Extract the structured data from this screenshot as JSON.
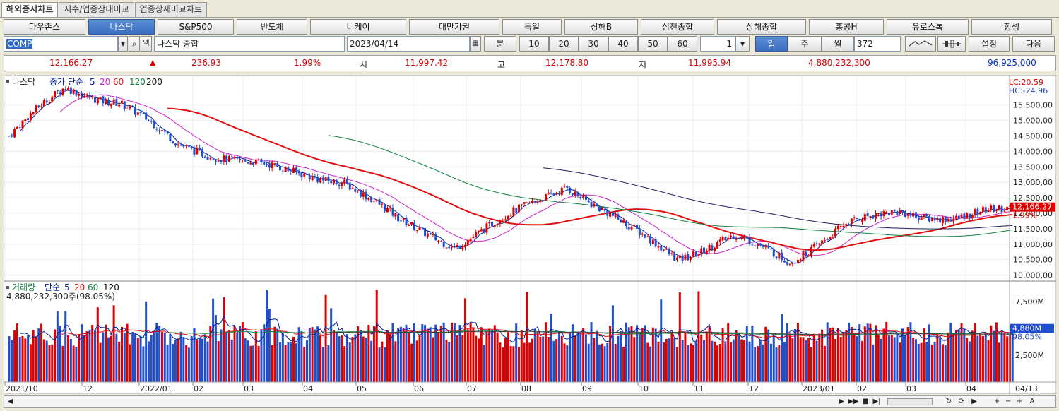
{
  "tabs": [
    "해외증시차트",
    "지수/업종상대비교",
    "업종상세비교차트"
  ],
  "markets": [
    "다우존스",
    "나스닥",
    "S&P500",
    "반도체",
    "니케이",
    "대만가권",
    "독일",
    "상해B",
    "심천종합",
    "상해종합",
    "홍콩H",
    "유로스톡",
    "항셍"
  ],
  "active_market": "나스닥",
  "controls": {
    "code": "COMP",
    "name": "나스닥 종합",
    "date": "2023/04/14",
    "minute_label": "분",
    "minute_options": [
      "10",
      "20",
      "30",
      "40",
      "50",
      "60"
    ],
    "spin_value": "1",
    "period_day": "일",
    "period_week": "주",
    "period_month": "월",
    "count": "372",
    "settings_label": "설정",
    "next_label": "다음",
    "chk_label": "옉"
  },
  "quote": {
    "price": "12,166.27",
    "change": "236.93",
    "change_pct": "1.99%",
    "open_label": "시",
    "open": "11,997.42",
    "high_label": "고",
    "high": "12,178.80",
    "low_label": "저",
    "low": "11,995.94",
    "volume": "4,880,232,300",
    "amount": "96,925,000"
  },
  "price_panel": {
    "title": "나스닥",
    "ma_prefix": "종가 단순",
    "ma_periods": [
      "5",
      "20",
      "60",
      "120",
      "200"
    ],
    "lc": "LC:20.59",
    "hc": "HC:-24.96",
    "current_tag": "12,166.27",
    "current_pct": "1.99%",
    "y_labels": [
      "15,500,00",
      "15,000,00",
      "14,500,00",
      "14,000,00",
      "13,500,00",
      "13,000,00",
      "12,500,00",
      "12,000,00",
      "11,500,00",
      "11,000,00",
      "10,500,00",
      "10,000,00"
    ]
  },
  "volume_panel": {
    "title": "거래량",
    "ma_prefix": "단순",
    "ma_periods": [
      "5",
      "20",
      "60",
      "120"
    ],
    "info": "4,880,232,300주(98.05%)",
    "y_labels": [
      "7,500M",
      "5,000M",
      "2,500M"
    ],
    "current_tag": "4,880M",
    "current_pct": "98.05%"
  },
  "x_labels": [
    "2021/10",
    "12",
    "2022/01",
    "02",
    "03",
    "04",
    "05",
    "06",
    "07",
    "08",
    "09",
    "10",
    "11",
    "12",
    "2023/01",
    "02",
    "03",
    "04"
  ],
  "x_end_label": "04/13",
  "colors": {
    "up": "#e00000",
    "down": "#1f4fcc",
    "ma5": "#0020a0",
    "ma20": "#d020d0",
    "ma60": "#e01010",
    "ma120": "#108040",
    "ma200": "#202060"
  },
  "chart_data": {
    "type": "candlestick",
    "x_range": [
      "2021/10",
      "2023/04/14"
    ],
    "y_range": [
      9900,
      16200
    ],
    "price_keypoints": [
      [
        "2021/10",
        14500
      ],
      [
        "2021/11",
        16050
      ],
      [
        "2021/12",
        15600
      ],
      [
        "2022/01",
        14200
      ],
      [
        "2022/02",
        13800
      ],
      [
        "2022/03",
        13300
      ],
      [
        "2022/04",
        13100
      ],
      [
        "2022/05",
        11700
      ],
      [
        "2022/06",
        11000
      ],
      [
        "2022/07",
        11900
      ],
      [
        "2022/08",
        12950
      ],
      [
        "2022/09",
        11600
      ],
      [
        "2022/10",
        10600
      ],
      [
        "2022/11",
        11200
      ],
      [
        "2022/12",
        10500
      ],
      [
        "2023/01",
        11600
      ],
      [
        "2023/02",
        12100
      ],
      [
        "2023/03",
        11800
      ],
      [
        "2023/04",
        12166.27
      ]
    ],
    "moving_averages": [
      "5",
      "20",
      "60",
      "120",
      "200"
    ],
    "volume_range_M": [
      0,
      9000
    ],
    "last_volume_M": 4880
  }
}
